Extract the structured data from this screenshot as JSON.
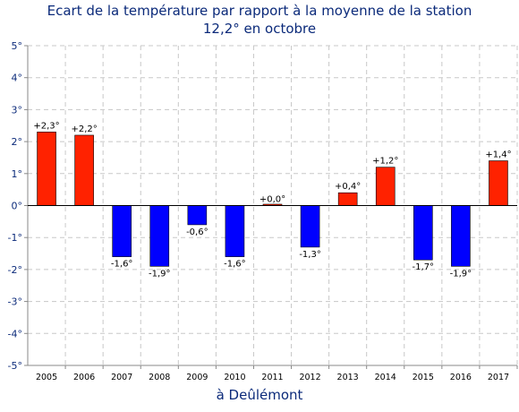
{
  "chart_data": {
    "type": "bar",
    "title": "Ecart de la température par rapport à la moyenne de la station",
    "subtitle": "12,2° en octobre",
    "xlabel": "à Deûlémont",
    "ylabel": "",
    "categories": [
      "2005",
      "2006",
      "2007",
      "2008",
      "2009",
      "2010",
      "2011",
      "2012",
      "2013",
      "2014",
      "2015",
      "2016",
      "2017"
    ],
    "values": [
      2.3,
      2.2,
      -1.6,
      -1.9,
      -0.6,
      -1.6,
      0.0,
      -1.3,
      0.4,
      1.2,
      -1.7,
      -1.9,
      1.4
    ],
    "data_labels": [
      "+2,3°",
      "+2,2°",
      "-1,6°",
      "-1,9°",
      "-0,6°",
      "-1,6°",
      "+0,0°",
      "-1,3°",
      "+0,4°",
      "+1,2°",
      "-1,7°",
      "-1,9°",
      "+1,4°"
    ],
    "ylim": [
      -5,
      5
    ],
    "yticks": [
      5,
      4,
      3,
      2,
      1,
      0,
      -1,
      -2,
      -3,
      -4,
      -5
    ],
    "ytick_labels": [
      "5°",
      "4°",
      "3°",
      "2°",
      "1°",
      "0°",
      "-1°",
      "-2°",
      "-3°",
      "-4°",
      "-5°"
    ],
    "grid": true,
    "colors": {
      "positive": "#ff2200",
      "negative": "#0000ff",
      "text": "#0b2a7a",
      "grid": "#c8c8c8",
      "axis": "#888888"
    }
  }
}
